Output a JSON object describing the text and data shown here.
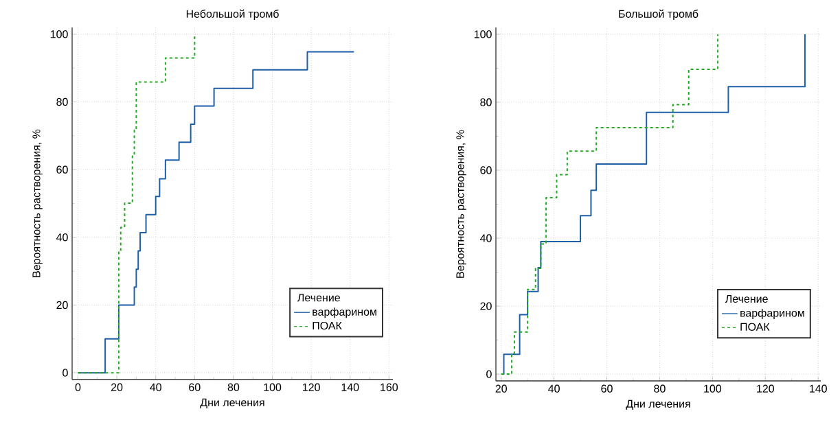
{
  "chart_data": [
    {
      "type": "step",
      "title": "Небольшой тромб",
      "xlabel": "Дни лечения",
      "ylabel": "Вероятность растворения, %",
      "legend_title": "Лечение",
      "legend": "bottom right",
      "grid": true,
      "xlim": [
        -3,
        162
      ],
      "ylim": [
        -2,
        102
      ],
      "xticks": [
        0,
        20,
        40,
        60,
        80,
        100,
        120,
        140,
        160
      ],
      "yticks": [
        0,
        20,
        40,
        60,
        80,
        100
      ],
      "series": [
        {
          "name": "варфарином",
          "color": "#1f5fa8",
          "line_style": "solid",
          "x": [
            0,
            14,
            21,
            29,
            30,
            31,
            32,
            35,
            40,
            42,
            45,
            52,
            58,
            60,
            70,
            90,
            118,
            142
          ],
          "values": [
            0,
            10,
            20,
            25.3,
            30.6,
            36,
            41.4,
            46.7,
            52.1,
            57.3,
            62.8,
            68.1,
            73.4,
            78.8,
            84,
            89.5,
            94.8,
            94.8
          ]
        },
        {
          "name": "ПОАК",
          "color": "#22aa22",
          "line_style": "dashed",
          "x": [
            0,
            21,
            22,
            24,
            28,
            29,
            30,
            45,
            60
          ],
          "values": [
            0,
            35.8,
            42.9,
            50.1,
            64,
            71.7,
            85.9,
            93,
            100
          ]
        }
      ]
    },
    {
      "type": "step",
      "title": "Большой тромб",
      "xlabel": "Дни лечения",
      "ylabel": "Вероятность растворения, %",
      "legend_title": "Лечение",
      "legend": "bottom right",
      "grid": true,
      "xlim": [
        18,
        141
      ],
      "ylim": [
        -2,
        102
      ],
      "xticks": [
        20,
        40,
        60,
        80,
        100,
        120,
        140
      ],
      "yticks": [
        0,
        20,
        40,
        60,
        80,
        100
      ],
      "series": [
        {
          "name": "варфарином",
          "color": "#1f5fa8",
          "line_style": "solid",
          "x": [
            20.5,
            21,
            27,
            30,
            34,
            35,
            50,
            54,
            56,
            75,
            106,
            135
          ],
          "values": [
            0,
            5.8,
            17.5,
            24.3,
            31.3,
            39,
            46.6,
            54.1,
            61.8,
            77,
            84.6,
            100
          ]
        },
        {
          "name": "ПОАК",
          "color": "#22aa22",
          "line_style": "dashed",
          "x": [
            20,
            24,
            25,
            30,
            33,
            35,
            37,
            41,
            45,
            56,
            85,
            91,
            102
          ],
          "values": [
            0,
            6.1,
            12.4,
            24.9,
            31.1,
            38.3,
            51.9,
            58.7,
            65.6,
            72.5,
            79.3,
            89.7,
            100
          ]
        }
      ]
    }
  ]
}
